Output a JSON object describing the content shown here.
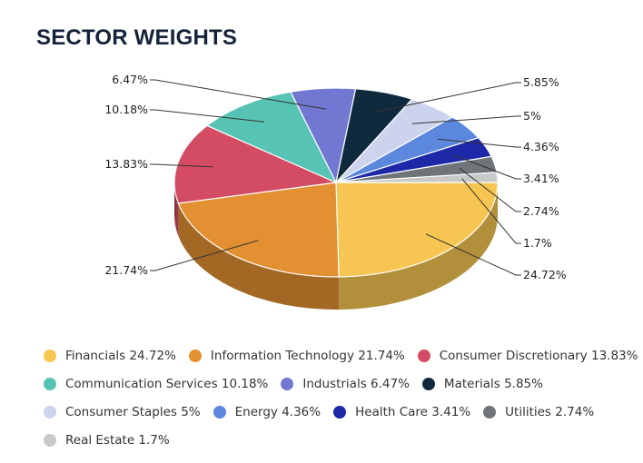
{
  "title": "SECTOR WEIGHTS",
  "chart_data": {
    "type": "pie",
    "title": "SECTOR WEIGHTS",
    "unit": "%",
    "slices": [
      {
        "name": "Financials",
        "value": 24.72,
        "label": "24.72%",
        "color": "#f7c652"
      },
      {
        "name": "Information Technology",
        "value": 21.74,
        "label": "21.74%",
        "color": "#e39032"
      },
      {
        "name": "Consumer Discretionary",
        "value": 13.83,
        "label": "13.83%",
        "color": "#d44c63"
      },
      {
        "name": "Communication Services",
        "value": 10.18,
        "label": "10.18%",
        "color": "#57c3b4"
      },
      {
        "name": "Industrials",
        "value": 6.47,
        "label": "6.47%",
        "color": "#7278d1"
      },
      {
        "name": "Materials",
        "value": 5.85,
        "label": "5.85%",
        "color": "#0f2a3d"
      },
      {
        "name": "Consumer Staples",
        "value": 5,
        "label": "5%",
        "color": "#ccd3ec"
      },
      {
        "name": "Energy",
        "value": 4.36,
        "label": "4.36%",
        "color": "#5b87dc"
      },
      {
        "name": "Health Care",
        "value": 3.41,
        "label": "3.41%",
        "color": "#1c28a8"
      },
      {
        "name": "Utilities",
        "value": 2.74,
        "label": "2.74%",
        "color": "#6e7478"
      },
      {
        "name": "Real Estate",
        "value": 1.7,
        "label": "1.7%",
        "color": "#c8c8c8"
      }
    ],
    "legend_position": "bottom"
  },
  "legend": {
    "rows": [
      [
        {
          "label": "Financials 24.72%",
          "color": "#f7c652"
        },
        {
          "label": "Information Technology 21.74%",
          "color": "#e39032"
        },
        {
          "label": "Consumer Discretionary 13.83%",
          "color": "#d44c63"
        }
      ],
      [
        {
          "label": "Communication Services 10.18%",
          "color": "#57c3b4"
        },
        {
          "label": "Industrials 6.47%",
          "color": "#7278d1"
        },
        {
          "label": "Materials 5.85%",
          "color": "#0f2a3d"
        }
      ],
      [
        {
          "label": "Consumer Staples 5%",
          "color": "#ccd3ec"
        },
        {
          "label": "Energy 4.36%",
          "color": "#5b87dc"
        },
        {
          "label": "Health Care 3.41%",
          "color": "#1c28a8"
        },
        {
          "label": "Utilities 2.74%",
          "color": "#6e7478"
        }
      ],
      [
        {
          "label": "Real Estate 1.7%",
          "color": "#c8c8c8"
        }
      ]
    ]
  }
}
